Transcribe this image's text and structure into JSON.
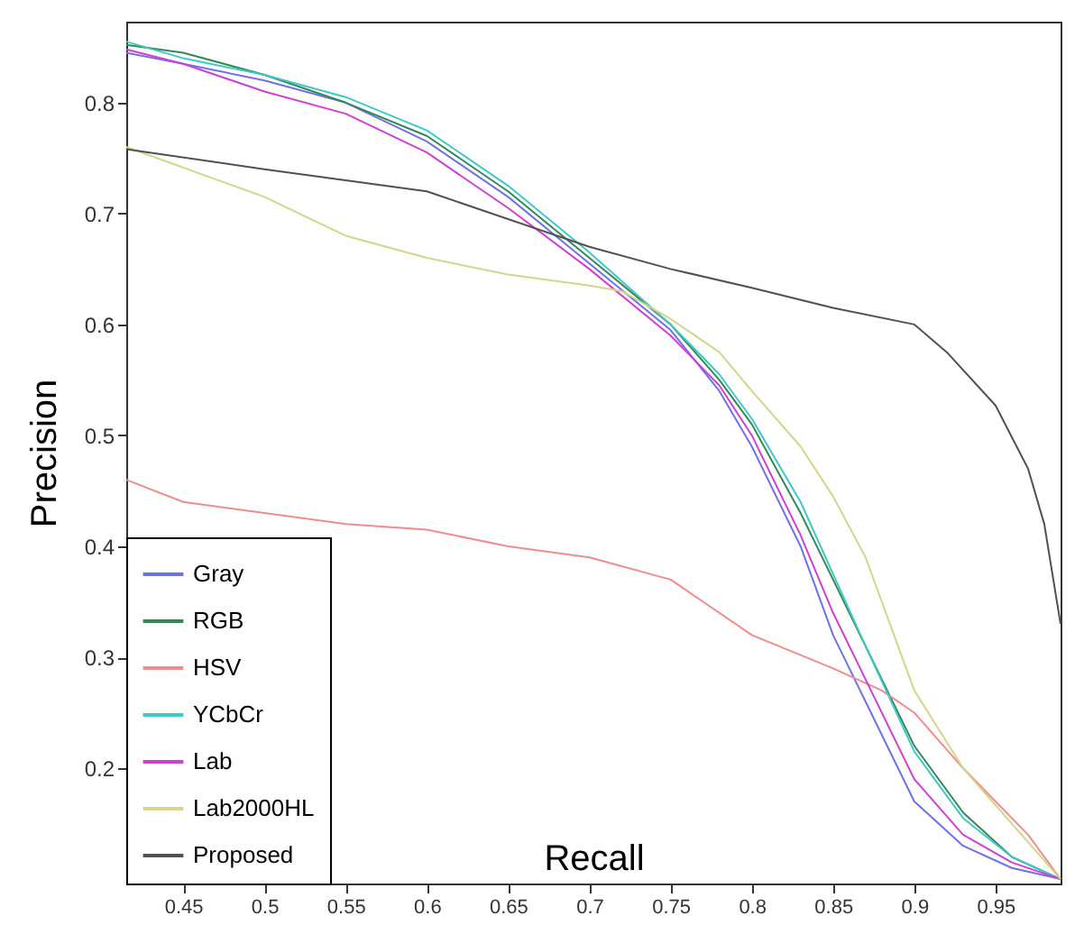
{
  "chart_data": {
    "type": "line",
    "xlabel": "Recall",
    "ylabel": "Precision",
    "xlim": [
      0.415,
      0.99
    ],
    "ylim": [
      0.096,
      0.873
    ],
    "xticks": [
      0.45,
      0.5,
      0.55,
      0.6,
      0.65,
      0.7,
      0.75,
      0.8,
      0.85,
      0.9,
      0.95
    ],
    "yticks": [
      0.2,
      0.3,
      0.4,
      0.5,
      0.6,
      0.7,
      0.8
    ],
    "grid": false,
    "legend": "bottom left",
    "line_style": "solid",
    "x": [
      0.415,
      0.45,
      0.5,
      0.55,
      0.6,
      0.65,
      0.7,
      0.75,
      0.78,
      0.8,
      0.83,
      0.85,
      0.87,
      0.9,
      0.93,
      0.96,
      0.99
    ],
    "series": [
      {
        "name": "Gray",
        "color": "#7070e8",
        "values": [
          0.845,
          0.835,
          0.82,
          0.8,
          0.765,
          0.715,
          0.655,
          0.595,
          0.54,
          0.49,
          0.4,
          0.32,
          0.26,
          0.17,
          0.13,
          0.11,
          0.1
        ]
      },
      {
        "name": "RGB",
        "color": "#338855",
        "values": [
          0.852,
          0.845,
          0.825,
          0.8,
          0.77,
          0.72,
          0.66,
          0.6,
          0.55,
          0.51,
          0.43,
          0.37,
          0.31,
          0.22,
          0.16,
          0.12,
          0.1
        ]
      },
      {
        "name": "HSV",
        "color": "#f08c8c",
        "x": [
          0.415,
          0.45,
          0.5,
          0.55,
          0.6,
          0.65,
          0.7,
          0.75,
          0.77,
          0.8,
          0.85,
          0.88,
          0.9,
          0.93,
          0.95,
          0.97,
          0.99
        ],
        "values": [
          0.46,
          0.44,
          0.43,
          0.42,
          0.415,
          0.4,
          0.39,
          0.37,
          0.35,
          0.32,
          0.29,
          0.27,
          0.25,
          0.2,
          0.17,
          0.14,
          0.1
        ]
      },
      {
        "name": "YCbCr",
        "color": "#40c8c8",
        "values": [
          0.855,
          0.84,
          0.825,
          0.805,
          0.775,
          0.725,
          0.665,
          0.6,
          0.555,
          0.515,
          0.44,
          0.375,
          0.31,
          0.215,
          0.155,
          0.12,
          0.1
        ]
      },
      {
        "name": "Lab",
        "color": "#d040d0",
        "values": [
          0.848,
          0.835,
          0.81,
          0.79,
          0.755,
          0.705,
          0.65,
          0.59,
          0.545,
          0.5,
          0.41,
          0.34,
          0.28,
          0.19,
          0.14,
          0.115,
          0.1
        ]
      },
      {
        "name": "Lab2000HL",
        "color": "#d4d48a",
        "x": [
          0.415,
          0.5,
          0.55,
          0.6,
          0.65,
          0.7,
          0.72,
          0.75,
          0.78,
          0.8,
          0.83,
          0.85,
          0.87,
          0.9,
          0.93,
          0.96,
          0.99
        ],
        "values": [
          0.76,
          0.715,
          0.68,
          0.66,
          0.645,
          0.635,
          0.63,
          0.605,
          0.575,
          0.54,
          0.49,
          0.445,
          0.39,
          0.27,
          0.2,
          0.15,
          0.1
        ]
      },
      {
        "name": "Proposed",
        "color": "#505050",
        "x": [
          0.415,
          0.5,
          0.6,
          0.7,
          0.75,
          0.8,
          0.85,
          0.9,
          0.92,
          0.95,
          0.97,
          0.98,
          0.99
        ],
        "values": [
          0.758,
          0.74,
          0.72,
          0.67,
          0.65,
          0.633,
          0.615,
          0.6,
          0.575,
          0.527,
          0.47,
          0.42,
          0.33
        ]
      }
    ]
  }
}
